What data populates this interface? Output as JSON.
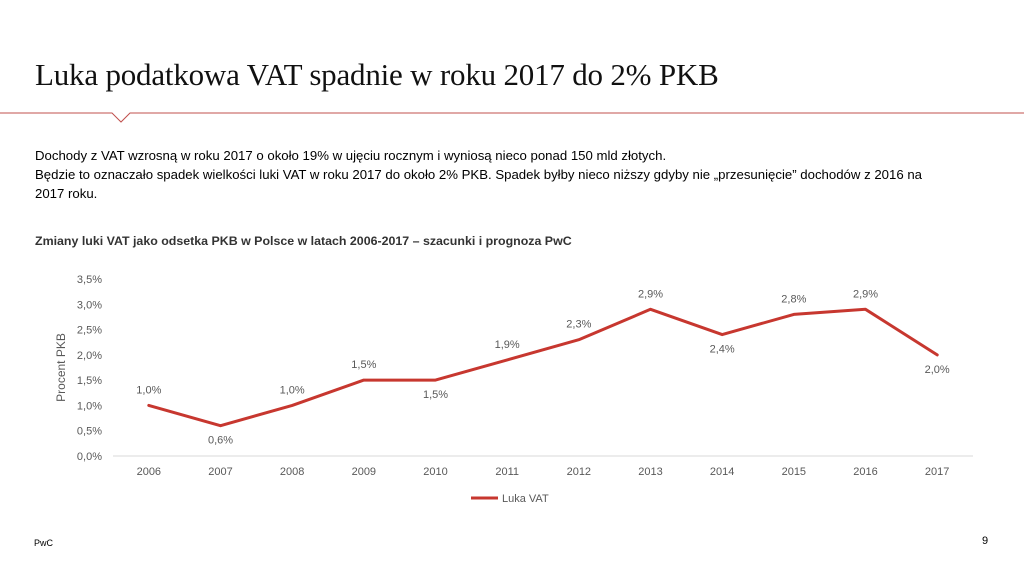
{
  "slide": {
    "title": "Luka podatkowa VAT spadnie w roku 2017 do 2% PKB",
    "paragraphs": [
      "Dochody z VAT wzrosną w roku 2017 o około 19% w ujęciu rocznym i wyniosą nieco ponad 150 mld złotych.",
      "Będzie to oznaczało spadek wielkości luki VAT w roku 2017 do około 2% PKB. Spadek byłby nieco niższy gdyby nie „przesunięcie” dochodów z 2016 na 2017 roku."
    ],
    "footer": "PwC",
    "page_number": "9"
  },
  "colors": {
    "accent": "#c7372f",
    "rule": "#c0504d",
    "grid": "#d9d9d9",
    "text": "#595959"
  },
  "chart_data": {
    "type": "line",
    "title": "Zmiany luki VAT jako odsetka PKB w Polsce w latach 2006-2017 – szacunki i prognoza PwC",
    "xlabel": "",
    "ylabel": "Procent PKB",
    "categories": [
      "2006",
      "2007",
      "2008",
      "2009",
      "2010",
      "2011",
      "2012",
      "2013",
      "2014",
      "2015",
      "2016",
      "2017"
    ],
    "series": [
      {
        "name": "Luka VAT",
        "values": [
          1.0,
          0.6,
          1.0,
          1.5,
          1.5,
          1.9,
          2.3,
          2.9,
          2.4,
          2.8,
          2.9,
          2.0
        ],
        "labels": [
          "1,0%",
          "0,6%",
          "1,0%",
          "1,5%",
          "1,5%",
          "1,9%",
          "2,3%",
          "2,9%",
          "2,4%",
          "2,8%",
          "2,9%",
          "2,0%"
        ]
      }
    ],
    "yticks": [
      0,
      0.5,
      1.0,
      1.5,
      2.0,
      2.5,
      3.0,
      3.5
    ],
    "ytick_labels": [
      "0,0%",
      "0,5%",
      "1,0%",
      "1,5%",
      "2,0%",
      "2,5%",
      "3,0%",
      "3,5%"
    ],
    "ylim": [
      0,
      3.5
    ],
    "grid": false,
    "legend_position": "bottom"
  }
}
